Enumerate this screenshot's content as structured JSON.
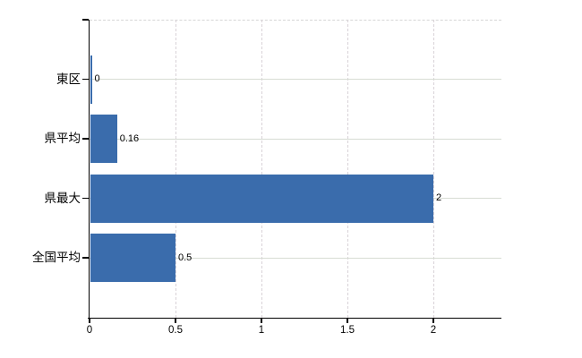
{
  "chart_data": {
    "type": "bar",
    "orientation": "horizontal",
    "title": "",
    "xlabel": "",
    "ylabel": "",
    "categories": [
      "東区",
      "県平均",
      "県最大",
      "全国平均"
    ],
    "values": [
      0,
      0.16,
      2,
      0.5
    ],
    "value_labels": [
      "0",
      "0.16",
      "2",
      "0.5"
    ],
    "x_ticks": [
      0,
      0.5,
      1,
      1.5,
      2
    ],
    "x_tick_labels": [
      "0",
      "0.5",
      "1",
      "1.5",
      "2"
    ],
    "xlim": [
      0,
      2.4
    ],
    "legend": "none",
    "grid": {
      "horizontal": "solid",
      "vertical": "dashed",
      "top_border": "dashed"
    },
    "colors": {
      "bar": "#3a6cac",
      "axis": "#000000",
      "grid_horizontal": "#d7dcd4",
      "grid_vertical": "#d9d3d8",
      "top_border": "#d6d6d6",
      "text": "#000000",
      "background": "#ffffff"
    }
  }
}
